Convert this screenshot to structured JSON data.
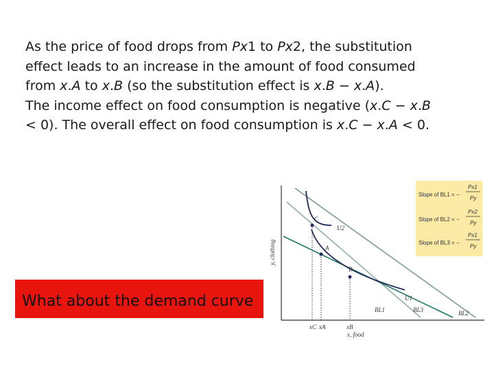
{
  "paragraph1": [
    {
      "t": "As the price of food drops from ",
      "i": false
    },
    {
      "t": "P",
      "i": true
    },
    {
      "t": "x",
      "i": true
    },
    {
      "t": "1 to ",
      "i": false
    },
    {
      "t": "P",
      "i": true
    },
    {
      "t": "x",
      "i": true
    },
    {
      "t": "2, the substitution effect leads to an increase in the amount of food consumed from ",
      "i": false
    },
    {
      "t": "x",
      "i": true
    },
    {
      "t": ".",
      "i": false
    },
    {
      "t": "A",
      "i": true
    },
    {
      "t": " to ",
      "i": false
    },
    {
      "t": "x",
      "i": true
    },
    {
      "t": ".",
      "i": false
    },
    {
      "t": "B",
      "i": true
    },
    {
      "t": " (so the substitution effect is ",
      "i": false
    },
    {
      "t": "x",
      "i": true
    },
    {
      "t": ".",
      "i": false
    },
    {
      "t": "B",
      "i": true
    },
    {
      "t": " − ",
      "i": false
    },
    {
      "t": "x",
      "i": true
    },
    {
      "t": ".",
      "i": false
    },
    {
      "t": "A",
      "i": true
    },
    {
      "t": ").",
      "i": false
    }
  ],
  "paragraph2": [
    {
      "t": "The income effect on food consumption is negative (",
      "i": false
    },
    {
      "t": "x",
      "i": true
    },
    {
      "t": ".",
      "i": false
    },
    {
      "t": "C",
      "i": true
    },
    {
      "t": " − ",
      "i": false
    },
    {
      "t": "x",
      "i": true
    },
    {
      "t": ".",
      "i": false
    },
    {
      "t": "B",
      "i": true
    },
    {
      "t": " < 0). The overall effect on food consumption is ",
      "i": false
    },
    {
      "t": "x",
      "i": true
    },
    {
      "t": ".",
      "i": false
    },
    {
      "t": "C",
      "i": true
    },
    {
      "t": " − ",
      "i": false
    },
    {
      "t": "x",
      "i": true
    },
    {
      "t": ".",
      "i": false
    },
    {
      "t": "A",
      "i": true
    },
    {
      "t": " < 0.",
      "i": false
    }
  ],
  "callout": "What about the demand curve",
  "slopes": [
    {
      "label": "Slope of BL1 = −",
      "num": "Px1",
      "den": "Py"
    },
    {
      "label": "Slope of BL2 = −",
      "num": "Px2",
      "den": "Py"
    },
    {
      "label": "Slope of BL3 = −",
      "num": "Px1",
      "den": "Py"
    }
  ],
  "graph": {
    "y_label": "y, clothing",
    "x_label": "x, food",
    "points": {
      "C": "C",
      "A": "A",
      "B": "B"
    },
    "curves": {
      "U1": "U1",
      "U2": "U2"
    },
    "lines": {
      "BL1": "BL1",
      "BL2": "BL2",
      "BL3": "BL3"
    },
    "ticks": {
      "xC": "xC",
      "xA": "xA",
      "xB": "xB"
    },
    "colors": {
      "bl1": "#2e7d6e",
      "bl2": "#1e7a66",
      "bl3": "#8fb0a6",
      "curve": "#1f2a5a",
      "axis": "#333333"
    }
  }
}
